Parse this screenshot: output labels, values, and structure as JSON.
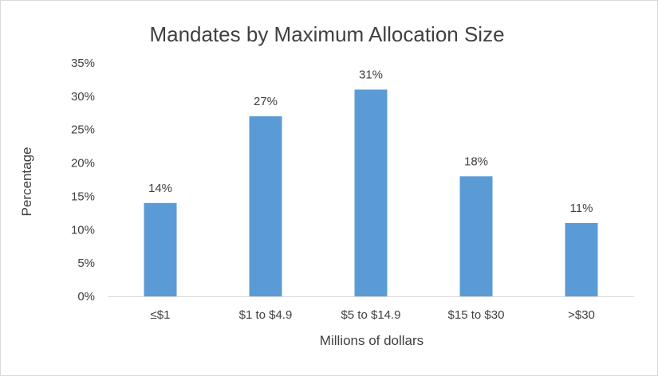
{
  "chart_data": {
    "type": "bar",
    "title": "Mandates by Maximum Allocation Size",
    "xlabel": "Millions of dollars",
    "ylabel": "Percentage",
    "categories": [
      "≤$1",
      "$1 to $4.9",
      "$5 to $14.9",
      "$15 to $30",
      ">$30"
    ],
    "values": [
      14,
      27,
      31,
      18,
      11
    ],
    "data_labels": [
      "14%",
      "27%",
      "31%",
      "18%",
      "11%"
    ],
    "ylim": [
      0,
      35
    ],
    "yticks": [
      0,
      5,
      10,
      15,
      20,
      25,
      30,
      35
    ],
    "ytick_labels": [
      "0%",
      "5%",
      "10%",
      "15%",
      "20%",
      "25%",
      "30%",
      "35%"
    ],
    "grid": false,
    "legend": "none",
    "bar_color": "#5b9bd5"
  }
}
